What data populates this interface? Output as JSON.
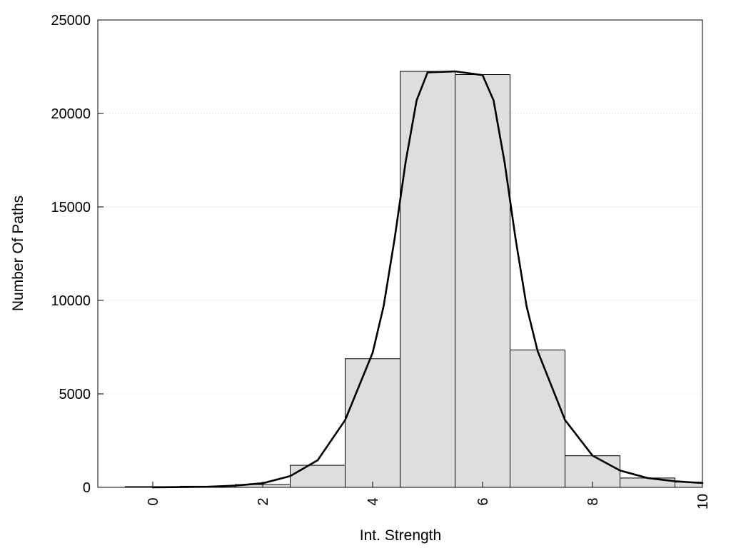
{
  "chart_data": {
    "type": "bar",
    "title": "",
    "xlabel": "Int. Strength",
    "ylabel": "Number Of Paths",
    "xlim": [
      -1,
      10
    ],
    "ylim": [
      0,
      25000
    ],
    "x_ticks": [
      0,
      2,
      4,
      6,
      8,
      10
    ],
    "y_ticks": [
      0,
      5000,
      10000,
      15000,
      20000,
      25000
    ],
    "grid": "horizontal dotted",
    "bar_color": "#dedede",
    "bar_edge_color": "#000000",
    "bins": [
      {
        "x": 0,
        "value": 40
      },
      {
        "x": 1,
        "value": 60
      },
      {
        "x": 2,
        "value": 150
      },
      {
        "x": 3,
        "value": 1180
      },
      {
        "x": 4,
        "value": 6880
      },
      {
        "x": 5,
        "value": 22250
      },
      {
        "x": 6,
        "value": 22080
      },
      {
        "x": 7,
        "value": 7350
      },
      {
        "x": 8,
        "value": 1690
      },
      {
        "x": 9,
        "value": 500
      },
      {
        "x": 10,
        "value": 280
      }
    ],
    "curve": {
      "x": [
        0,
        1,
        1.5,
        2,
        2.5,
        3,
        3.5,
        4,
        4.2,
        4.4,
        4.6,
        4.8,
        5,
        5.5,
        6,
        6.2,
        6.4,
        6.6,
        6.8,
        7,
        7.5,
        8,
        8.5,
        9,
        9.5,
        10
      ],
      "y": [
        0,
        30,
        90,
        220,
        600,
        1450,
        3600,
        7200,
        9700,
        13300,
        17400,
        20700,
        22200,
        22250,
        22050,
        20700,
        17400,
        13300,
        9700,
        7300,
        3600,
        1700,
        900,
        500,
        330,
        230
      ]
    }
  }
}
